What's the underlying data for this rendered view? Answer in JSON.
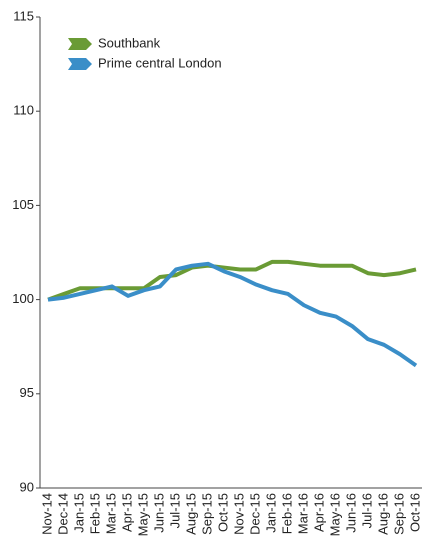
{
  "chart_data": {
    "type": "line",
    "categories": [
      "Nov-14",
      "Dec-14",
      "Jan-15",
      "Feb-15",
      "Mar-15",
      "Apr-15",
      "May-15",
      "Jun-15",
      "Jul-15",
      "Aug-15",
      "Sep-15",
      "Oct-15",
      "Nov-15",
      "Dec-15",
      "Jan-16",
      "Feb-16",
      "Mar-16",
      "Apr-16",
      "May-16",
      "Jun-16",
      "Jul-16",
      "Aug-16",
      "Sep-16",
      "Oct-16"
    ],
    "series": [
      {
        "name": "Southbank",
        "color": "#6a9b35",
        "values": [
          100,
          100.3,
          100.6,
          100.6,
          100.6,
          100.6,
          100.6,
          101.2,
          101.3,
          101.7,
          101.8,
          101.7,
          101.6,
          101.6,
          102.0,
          102.0,
          101.9,
          101.8,
          101.8,
          101.8,
          101.4,
          101.3,
          101.4,
          101.6
        ]
      },
      {
        "name": "Prime central London",
        "color": "#3a8ec8",
        "values": [
          100,
          100.1,
          100.3,
          100.5,
          100.7,
          100.2,
          100.5,
          100.7,
          101.6,
          101.8,
          101.9,
          101.5,
          101.2,
          100.8,
          100.5,
          100.3,
          99.7,
          99.3,
          99.1,
          98.6,
          97.9,
          97.6,
          97.1,
          96.5
        ]
      }
    ],
    "ylim": [
      90,
      115
    ],
    "yticks": [
      90,
      95,
      100,
      105,
      110,
      115
    ],
    "grid": false,
    "legend": "upper left"
  }
}
